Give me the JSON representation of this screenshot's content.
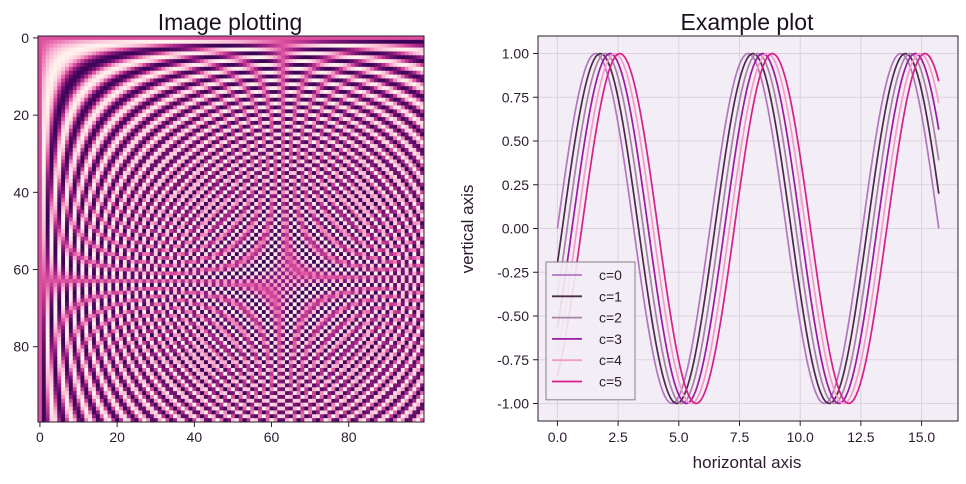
{
  "figure": {
    "background": "#ffffff"
  },
  "chart_data": [
    {
      "type": "heatmap",
      "title": "Image plotting",
      "rows": 100,
      "cols": 100,
      "function": "sin(x*y/20)",
      "colormap": [
        "#3a0456",
        "#8e1a7f",
        "#dd4f9e",
        "#f8aecf",
        "#fff1ec"
      ],
      "xticks": [
        0,
        20,
        40,
        60,
        80
      ],
      "yticks": [
        0,
        20,
        40,
        60,
        80
      ],
      "xlim": [
        -0.5,
        99.5
      ],
      "ylim": [
        99.5,
        -0.5
      ],
      "xlabel": "",
      "ylabel": ""
    },
    {
      "type": "line",
      "title": "Example plot",
      "xlabel": "horizontal axis",
      "ylabel": "vertical axis",
      "xlim": [
        -0.8,
        16.5
      ],
      "ylim": [
        -1.1,
        1.1
      ],
      "xticks": [
        "0.0",
        "2.5",
        "5.0",
        "7.5",
        "10.0",
        "12.5",
        "15.0"
      ],
      "yticks": [
        "-1.00",
        "-0.75",
        "-0.50",
        "-0.25",
        "0.00",
        "0.25",
        "0.50",
        "0.75",
        "1.00"
      ],
      "grid": true,
      "background": "#f3edf5",
      "legend_position": "lower-left",
      "x": {
        "start": 0,
        "end": 15.708,
        "points": 200
      },
      "series": [
        {
          "name": "c=0",
          "offset": 0.0,
          "color": "#b276c0"
        },
        {
          "name": "c=1",
          "offset": 0.2,
          "color": "#4b2a4a"
        },
        {
          "name": "c=2",
          "offset": 0.4,
          "color": "#a783a3"
        },
        {
          "name": "c=3",
          "offset": 0.6,
          "color": "#9b1aa6"
        },
        {
          "name": "c=4",
          "offset": 0.8,
          "color": "#f59cc4"
        },
        {
          "name": "c=5",
          "offset": 1.0,
          "color": "#d81f8c"
        }
      ]
    }
  ]
}
